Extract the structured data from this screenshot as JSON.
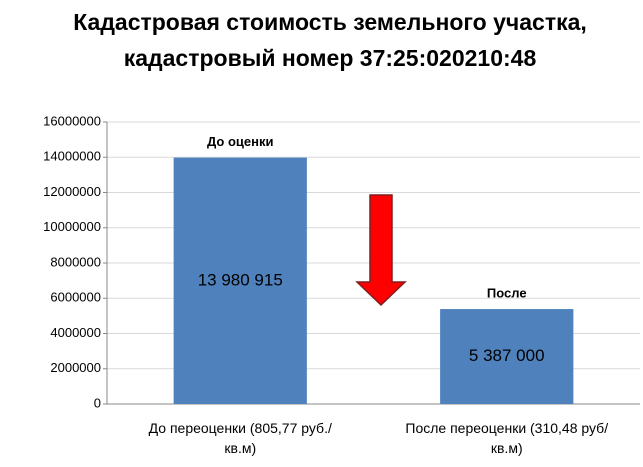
{
  "chart_data": {
    "type": "bar",
    "title": "Кадастровая стоимость  земельного участка, кадастровый номер 37:25:020210:48",
    "categories": [
      "До переоценки (805,77 руб./кв.м)",
      "После переоценки (310,48 руб/кв.м)"
    ],
    "values": [
      13980915,
      5387000
    ],
    "value_labels": [
      "13 980 915",
      "5 387 000"
    ],
    "annotations": [
      "До оценки",
      "После"
    ],
    "color": "#4f81bd",
    "ylim": [
      0,
      16000000
    ],
    "yticks": [
      0,
      2000000,
      4000000,
      6000000,
      8000000,
      10000000,
      12000000,
      14000000,
      16000000
    ],
    "grid": true
  }
}
